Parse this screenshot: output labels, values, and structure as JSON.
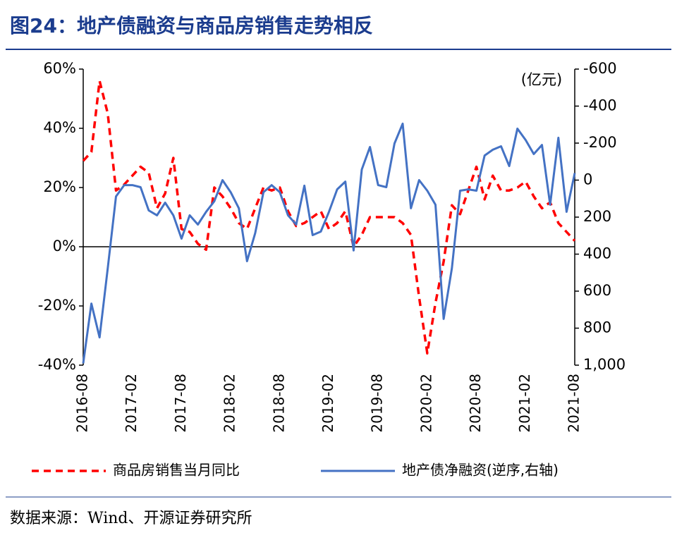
{
  "chart_data": {
    "type": "line",
    "title": "图24：地产债融资与商品房销售走势相反",
    "y2_label": "(亿元)",
    "source": "数据来源：Wind、开源证券研究所",
    "categories": [
      "2016-08",
      null,
      null,
      null,
      null,
      null,
      "2017-02",
      null,
      null,
      null,
      null,
      null,
      "2017-08",
      null,
      null,
      null,
      null,
      null,
      "2018-02",
      null,
      null,
      null,
      null,
      null,
      "2018-08",
      null,
      null,
      null,
      null,
      null,
      "2019-02",
      null,
      null,
      null,
      null,
      null,
      "2019-08",
      null,
      null,
      null,
      null,
      null,
      "2020-02",
      null,
      null,
      null,
      null,
      null,
      "2020-08",
      null,
      null,
      null,
      null,
      null,
      "2021-02",
      null,
      null,
      null,
      null,
      null,
      "2021-08"
    ],
    "ylim": [
      -40,
      60
    ],
    "yticks": [
      {
        "value": 60,
        "label": "60%"
      },
      {
        "value": 40,
        "label": "40%"
      },
      {
        "value": 20,
        "label": "20%"
      },
      {
        "value": 0,
        "label": "0%"
      },
      {
        "value": -20,
        "label": "-20%"
      },
      {
        "value": -40,
        "label": "-40%"
      }
    ],
    "y2lim": [
      -600,
      1000
    ],
    "y2_reversed": true,
    "y2ticks": [
      -600,
      -400,
      -200,
      0,
      200,
      400,
      600,
      800,
      {
        "value": 1000,
        "label": "1,000"
      }
    ],
    "series": [
      {
        "name": "商品房销售当月同比",
        "color": "#ff0000",
        "dashed": true,
        "values": [
          29,
          32,
          56,
          45,
          19,
          21,
          24,
          27,
          25,
          13,
          18,
          30,
          6,
          5,
          1,
          -1,
          20,
          17,
          13,
          8,
          6,
          13,
          20,
          19,
          20,
          12,
          7,
          8,
          10,
          12,
          6,
          8,
          12,
          0,
          4,
          10,
          10,
          10,
          10,
          8,
          4,
          -17,
          -36,
          -19,
          -5,
          14,
          11,
          19,
          27,
          16,
          24,
          19,
          19,
          20,
          22,
          17,
          13,
          15,
          8,
          5,
          2
        ]
      },
      {
        "name": "地产债净融资(逆序,右轴)",
        "color": "#4472c4",
        "axis": "y2",
        "values": [
          990,
          667,
          850,
          476,
          88,
          27,
          27,
          38,
          164,
          190,
          122,
          190,
          316,
          190,
          240,
          171,
          114,
          0,
          65,
          152,
          438,
          286,
          65,
          27,
          65,
          190,
          240,
          30,
          297,
          278,
          171,
          50,
          8,
          380,
          -57,
          -179,
          27,
          38,
          -198,
          -305,
          152,
          0,
          57,
          133,
          750,
          476,
          57,
          50,
          57,
          -133,
          -164,
          -183,
          -76,
          -278,
          -217,
          -141,
          -190,
          133,
          -229,
          171,
          -38
        ]
      }
    ]
  }
}
